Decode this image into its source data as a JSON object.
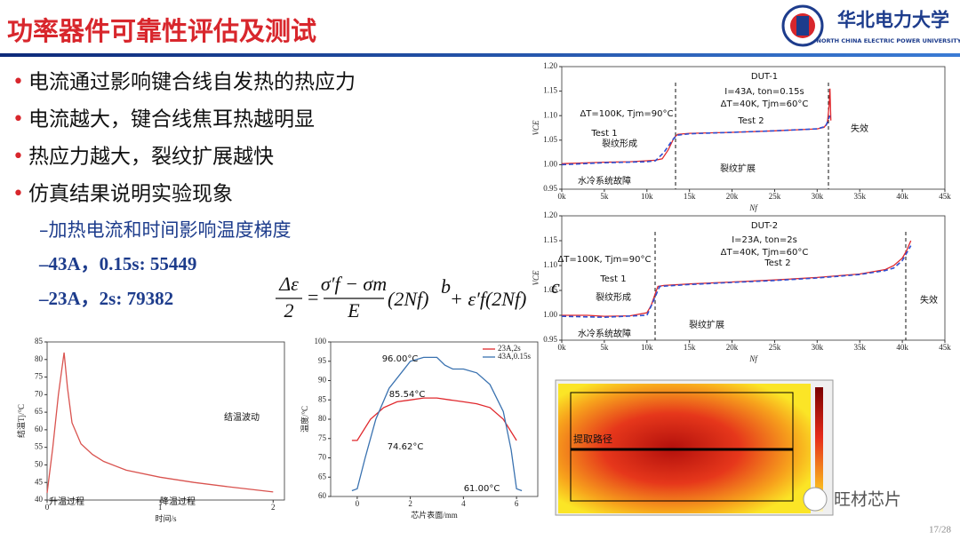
{
  "header": {
    "title": "功率器件可靠性评估及测试",
    "logo_name": "华北电力大学",
    "logo_sub": "NORTH CHINA ELECTRIC POWER UNIVERSITY"
  },
  "bullets": [
    "电流通过影响键合线自发热的热应力",
    "电流越大，键合线焦耳热越明显",
    "热应力越大，裂纹扩展越快",
    "仿真结果说明实验现象"
  ],
  "sub_bullets": [
    "–加热电流和时间影响温度梯度",
    "–43A，0.15s: 55449",
    "–23A，2s: 79382"
  ],
  "formula": {
    "lhs_num": "Δε",
    "lhs_den": "2",
    "frac_num": "σ′f − σm",
    "frac_den": "E",
    "eq": "=",
    "term1": "(2Nf)",
    "exp1": "b",
    "term2": "+ ε′f(2Nf)",
    "exp2": "c"
  },
  "heatmap": {
    "label": "提取路径"
  },
  "watermark": "旺材芯片",
  "page": "17/28",
  "chart_data": [
    {
      "type": "line",
      "xlabel": "Nf",
      "ylabel": "VCE",
      "xlim": [
        0,
        45000
      ],
      "ylim": [
        0.95,
        1.2
      ],
      "xticks": [
        {
          "value": 0,
          "label": "0k"
        },
        {
          "value": 5000,
          "label": "5k"
        },
        {
          "value": 10000,
          "label": "10k"
        },
        {
          "value": 15000,
          "label": "15k"
        },
        {
          "value": 20000,
          "label": "20k"
        },
        {
          "value": 25000,
          "label": "25k"
        },
        {
          "value": 30000,
          "label": "30k"
        },
        {
          "value": 35000,
          "label": "35k"
        },
        {
          "value": 40000,
          "label": "40k"
        },
        {
          "value": 45000,
          "label": "45k"
        }
      ],
      "yticks": [
        0.95,
        {
          "value": 1,
          "label": "1.00"
        },
        1.05,
        {
          "value": 1.1,
          "label": "1.10"
        },
        1.15,
        {
          "value": 1.2,
          "label": "1.20"
        }
      ],
      "series": [
        {
          "color": "#e0282d",
          "dash": false,
          "x": [
            0,
            2000,
            5000,
            8000,
            10000,
            11000,
            11800,
            12500,
            13200,
            13600,
            15000,
            20000,
            25000,
            30000,
            30800,
            31200,
            31400,
            31500,
            31600
          ],
          "values": [
            1.002,
            1.003,
            1.005,
            1.006,
            1.008,
            1.009,
            1.012,
            1.03,
            1.055,
            1.062,
            1.064,
            1.066,
            1.069,
            1.073,
            1.076,
            1.085,
            1.12,
            1.155,
            1.09
          ]
        },
        {
          "color": "#2f4fd0",
          "dash": true,
          "x": [
            0,
            5000,
            10000,
            11000,
            12000,
            13000,
            13500,
            15000,
            20000,
            25000,
            30000,
            31000,
            31500
          ],
          "values": [
            1.0,
            1.004,
            1.006,
            1.008,
            1.025,
            1.05,
            1.06,
            1.063,
            1.066,
            1.069,
            1.073,
            1.078,
            1.1
          ]
        }
      ],
      "annotations": [
        "DUT-1",
        "I=43A, ton=0.15s",
        "ΔT=40K, Tjm=60°C",
        "ΔT=100K, Tjm=90°C",
        "Test 1",
        "Test 2",
        "裂纹形成",
        "裂纹扩展",
        "失效",
        "水冷系统故障"
      ]
    },
    {
      "type": "line",
      "xlabel": "Nf",
      "ylabel": "VCE",
      "xlim": [
        0,
        45000
      ],
      "ylim": [
        0.95,
        1.2
      ],
      "xticks": [
        {
          "value": 0,
          "label": "0k"
        },
        {
          "value": 5000,
          "label": "5k"
        },
        {
          "value": 10000,
          "label": "10k"
        },
        {
          "value": 15000,
          "label": "15k"
        },
        {
          "value": 20000,
          "label": "20k"
        },
        {
          "value": 25000,
          "label": "25k"
        },
        {
          "value": 30000,
          "label": "30k"
        },
        {
          "value": 35000,
          "label": "35k"
        },
        {
          "value": 40000,
          "label": "40k"
        },
        {
          "value": 45000,
          "label": "45k"
        }
      ],
      "yticks": [
        0.95,
        {
          "value": 1,
          "label": "1.00"
        },
        1.05,
        {
          "value": 1.1,
          "label": "1.10"
        },
        1.15,
        {
          "value": 1.2,
          "label": "1.20"
        }
      ],
      "series": [
        {
          "color": "#e0282d",
          "dash": false,
          "x": [
            0,
            3000,
            5000,
            8000,
            10000,
            10500,
            11000,
            11300,
            12000,
            15000,
            20000,
            25000,
            30000,
            35000,
            38000,
            39000,
            40000,
            40500,
            41000
          ],
          "values": [
            1.0,
            1.0,
            0.998,
            0.999,
            1.005,
            1.02,
            1.045,
            1.058,
            1.06,
            1.063,
            1.067,
            1.071,
            1.076,
            1.083,
            1.092,
            1.1,
            1.115,
            1.13,
            1.15
          ]
        },
        {
          "color": "#2f4fd0",
          "dash": true,
          "x": [
            0,
            5000,
            10000,
            10800,
            11500,
            15000,
            20000,
            25000,
            30000,
            35000,
            38000,
            39000,
            40000,
            41000
          ],
          "values": [
            0.998,
            0.996,
            1.0,
            1.03,
            1.058,
            1.062,
            1.066,
            1.07,
            1.075,
            1.082,
            1.09,
            1.095,
            1.11,
            1.14
          ]
        }
      ],
      "annotations": [
        "DUT-2",
        "I=23A, ton=2s",
        "ΔT=40K, Tjm=60°C",
        "ΔT=100K, Tjm=90°C",
        "Test 1",
        "Test 2",
        "裂纹形成",
        "裂纹扩展",
        "失效",
        "水冷系统故障"
      ]
    },
    {
      "type": "line",
      "xlabel": "时间/s",
      "ylabel": "结温Tj/°C",
      "xlim": [
        0,
        2.1
      ],
      "ylim": [
        40,
        85
      ],
      "xticks": [
        0,
        1,
        2
      ],
      "yticks": [
        40,
        45,
        50,
        55,
        60,
        65,
        70,
        75,
        80,
        85
      ],
      "series": [
        {
          "color": "#d9534f",
          "dash": false,
          "x": [
            0,
            0.05,
            0.1,
            0.15,
            0.18,
            0.22,
            0.3,
            0.4,
            0.5,
            0.7,
            1.0,
            1.3,
            1.6,
            2.0
          ],
          "values": [
            42,
            55,
            70,
            82,
            72,
            62,
            56,
            53,
            51,
            48.5,
            46.5,
            45,
            43.8,
            42.3
          ]
        }
      ],
      "annotations": [
        "结温波动",
        "升温过程",
        "降温过程"
      ]
    },
    {
      "type": "line",
      "xlabel": "芯片表面/mm",
      "ylabel": "温度/°C",
      "xlim": [
        -1,
        6.8
      ],
      "ylim": [
        60,
        100
      ],
      "xticks": [
        0,
        2,
        4,
        6
      ],
      "yticks": [
        60,
        65,
        70,
        75,
        80,
        85,
        90,
        95,
        100
      ],
      "series": [
        {
          "name": "23A,2s",
          "color": "#e0282d",
          "dash": false,
          "x": [
            -0.2,
            0,
            0.5,
            1,
            1.5,
            2,
            2.5,
            3,
            3.5,
            4,
            4.5,
            5,
            5.5,
            6
          ],
          "values": [
            74.5,
            74.5,
            80,
            83,
            84.5,
            85,
            85.5,
            85.5,
            85,
            84.5,
            84,
            83,
            80,
            74.5
          ]
        },
        {
          "name": "43A,0.15s",
          "color": "#3a72b0",
          "dash": false,
          "x": [
            -0.2,
            0,
            0.3,
            0.7,
            1.2,
            2,
            2.5,
            3,
            3.3,
            3.6,
            4,
            4.5,
            5,
            5.5,
            5.8,
            6,
            6.2
          ],
          "values": [
            61.5,
            62,
            70,
            80,
            88,
            95,
            96,
            96,
            94,
            93,
            93,
            92,
            89,
            82,
            72,
            62,
            61.5
          ]
        }
      ],
      "annotations": [
        "96.00°C",
        "85.54°C",
        "74.62°C",
        "61.00°C"
      ]
    }
  ]
}
